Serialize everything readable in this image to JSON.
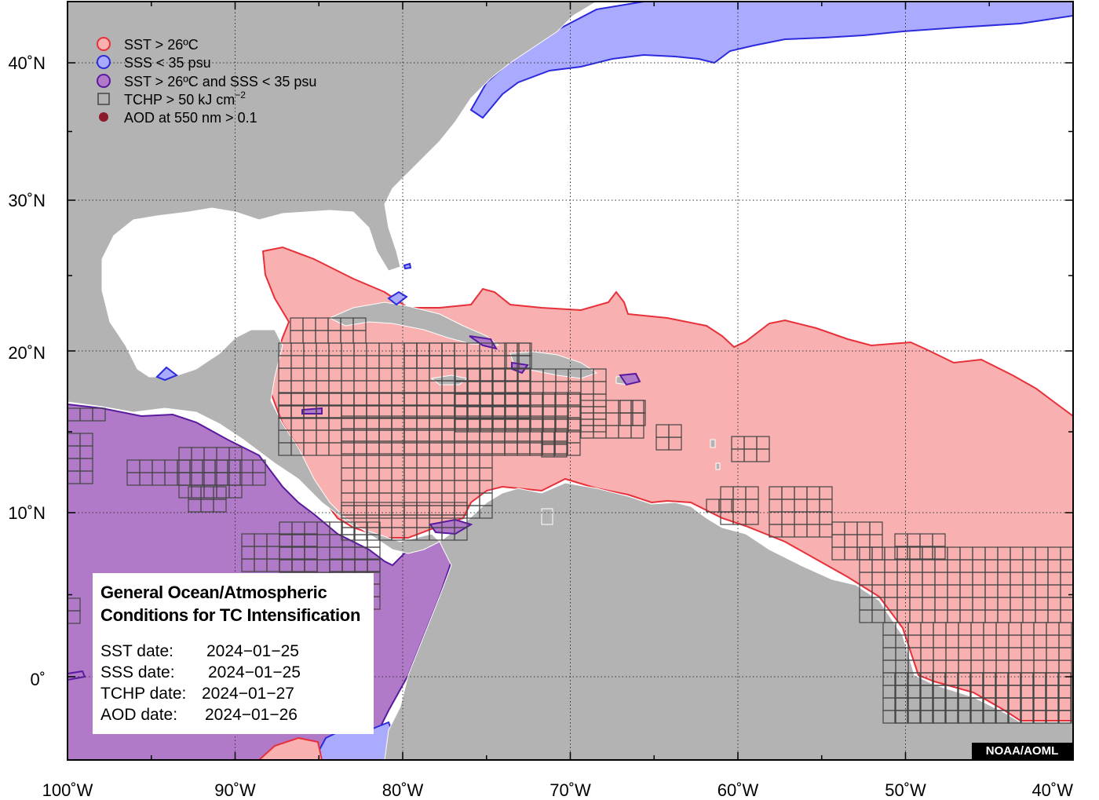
{
  "map": {
    "x_ticks": [
      {
        "label": "100˚W",
        "lon": -100
      },
      {
        "label": "90˚W",
        "lon": -90
      },
      {
        "label": "80˚W",
        "lon": -80
      },
      {
        "label": "70˚W",
        "lon": -70
      },
      {
        "label": "60˚W",
        "lon": -60
      },
      {
        "label": "50˚W",
        "lon": -50
      },
      {
        "label": "40˚W",
        "lon": -40
      }
    ],
    "y_ticks": [
      {
        "label": "40˚N",
        "lat": 40
      },
      {
        "label": "30˚N",
        "lat": 30
      },
      {
        "label": "20˚N",
        "lat": 20
      },
      {
        "label": "10˚N",
        "lat": 10
      },
      {
        "label": "0˚",
        "lat": 0
      }
    ],
    "lon_range": [
      -100,
      -40
    ],
    "lat_range": [
      -5,
      44
    ],
    "grid": "dotted",
    "colors": {
      "land": "#b3b3b3",
      "ocean": "#ffffff",
      "sst_fill": "#f9b0b0",
      "sst_line": "#e8303a",
      "sss_fill": "#aaaaff",
      "sss_line": "#2b2bdd",
      "both_fill": "#b07ac8",
      "both_line": "#5a1aa0",
      "tchp_box": "#444444",
      "aod_dot": "#8b1a2a"
    }
  },
  "legend": {
    "items": [
      {
        "label": "SST > 26ºC",
        "symbol": "sst-circle"
      },
      {
        "label": "SSS < 35 psu",
        "symbol": "sss-circle"
      },
      {
        "label": "SST > 26ºC and SSS < 35 psu",
        "symbol": "both-circle"
      },
      {
        "label": "TCHP > 50 kJ cm",
        "sup": "−2",
        "symbol": "tchp-square"
      },
      {
        "label": "AOD at 550 nm > 0.1",
        "symbol": "aod-dot"
      }
    ]
  },
  "info": {
    "title_line1": "General Ocean/Atmospheric",
    "title_line2": "Conditions for TC Intensification",
    "rows": [
      {
        "label": "SST date:",
        "value": "2024−01−25"
      },
      {
        "label": "SSS date:",
        "value": "2024−01−25"
      },
      {
        "label": "TCHP date:",
        "value": "2024−01−27"
      },
      {
        "label": "AOD date:",
        "value": "2024−01−26"
      }
    ]
  },
  "credit": "NOAA/AOML"
}
